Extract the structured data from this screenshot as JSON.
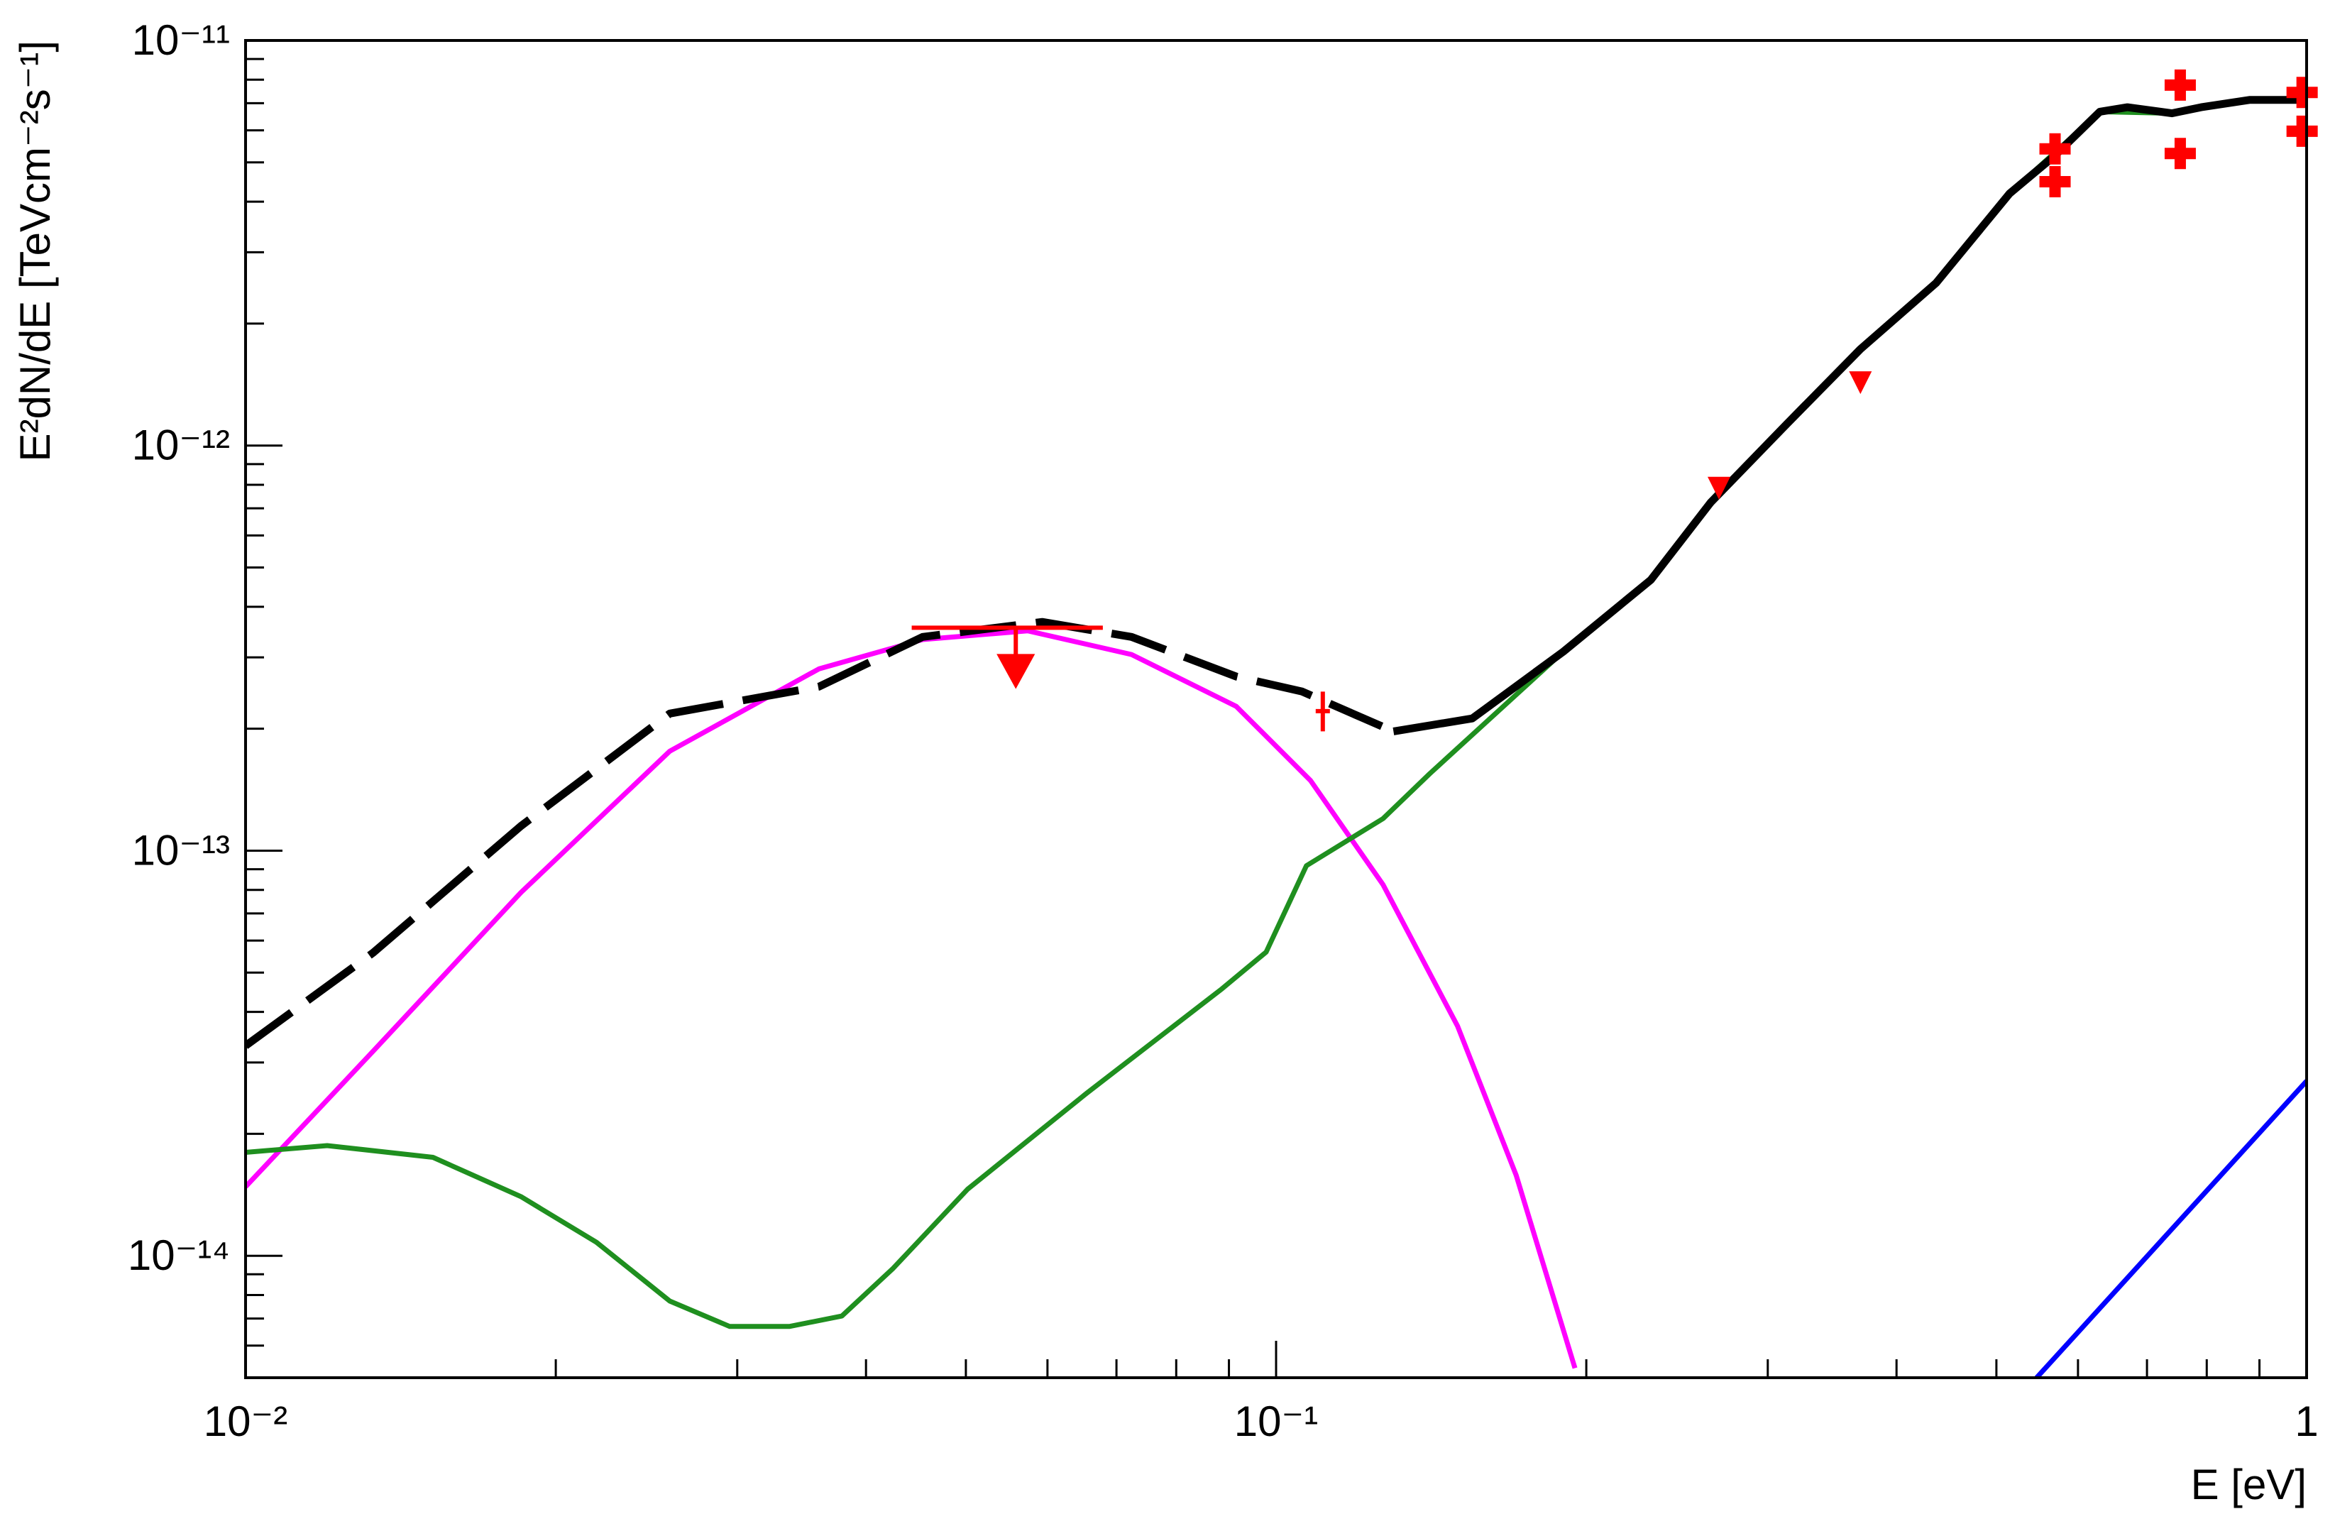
{
  "chart_data": {
    "type": "line",
    "y_label": "E²dN/dE [TeVcm⁻²s⁻¹]",
    "x_label": "E [eV]",
    "xscale": "log",
    "yscale": "log",
    "xlim": [
      0.01,
      1
    ],
    "ylim": [
      5e-15,
      1e-11
    ],
    "xticks": [
      {
        "value": 0.01,
        "label": "10⁻²"
      },
      {
        "value": 0.1,
        "label": "10⁻¹"
      },
      1
    ],
    "yticks": [
      {
        "value": 1e-14,
        "label": "10⁻¹⁴"
      },
      {
        "value": 1e-13,
        "label": "10⁻¹³"
      },
      {
        "value": 1e-12,
        "label": "10⁻¹²"
      },
      {
        "value": 1e-11,
        "label": "10⁻¹¹"
      }
    ],
    "series": [
      {
        "color": "#ff00ff",
        "style": "solid",
        "x": [
          0.01,
          0.0133,
          0.0185,
          0.0258,
          0.036,
          0.0454,
          0.0574,
          0.0724,
          0.0915,
          0.108,
          0.127,
          0.15,
          0.171,
          0.195
        ],
        "values": [
          1.48e-14,
          3.2e-14,
          7.88e-14,
          1.76e-13,
          2.81e-13,
          3.32e-13,
          3.49e-13,
          3.05e-13,
          2.27e-13,
          1.49e-13,
          8.24e-14,
          3.69e-14,
          1.58e-14,
          5.28e-15
        ]
      },
      {
        "color": "#1f8f1f",
        "style": "solid",
        "x": [
          0.01,
          0.012,
          0.0152,
          0.0185,
          0.0219,
          0.0258,
          0.0295,
          0.0337,
          0.0379,
          0.0425,
          0.0502,
          0.0655,
          0.0886,
          0.0978,
          0.107,
          0.127,
          0.141,
          0.19,
          0.231,
          0.264,
          0.313,
          0.369,
          0.437,
          0.515,
          0.63,
          0.74,
          0.88,
          1.0
        ],
        "values": [
          1.8e-14,
          1.87e-14,
          1.75e-14,
          1.4e-14,
          1.08e-14,
          7.73e-15,
          6.69e-15,
          6.69e-15,
          7.1e-15,
          9.31e-15,
          1.46e-14,
          2.52e-14,
          4.56e-14,
          5.62e-14,
          9.18e-14,
          1.2e-13,
          1.55e-13,
          3.1e-13,
          4.66e-13,
          7.23e-13,
          1.13e-12,
          1.73e-12,
          2.52e-12,
          4.19e-12,
          6.67e-12,
          6.61e-12,
          7.13e-12,
          7.13e-12
        ]
      },
      {
        "color": "#0000ff",
        "style": "solid",
        "x": [
          0.547,
          1.0
        ],
        "values": [
          5e-15,
          2.7e-14
        ]
      },
      {
        "color": "#000000",
        "style": "dashed",
        "x": [
          0.01,
          0.0133,
          0.0185,
          0.0258,
          0.036,
          0.0454,
          0.0593,
          0.0724,
          0.0915,
          0.106,
          0.13
        ],
        "values": [
          3.3e-14,
          5.6e-14,
          1.15e-13,
          2.18e-13,
          2.54e-13,
          3.37e-13,
          3.67e-13,
          3.37e-13,
          2.69e-13,
          2.47e-13,
          1.97e-13
        ]
      },
      {
        "color": "#000000",
        "style": "solid",
        "x": [
          0.13,
          0.155,
          0.19,
          0.231,
          0.264,
          0.313,
          0.369,
          0.437,
          0.515,
          0.569,
          0.63,
          0.67,
          0.74,
          0.79,
          0.88,
          1.0
        ],
        "values": [
          1.97e-13,
          2.12e-13,
          3.1e-13,
          4.66e-13,
          7.23e-13,
          1.13e-12,
          1.73e-12,
          2.52e-12,
          4.19e-12,
          5.18e-12,
          6.67e-12,
          6.84e-12,
          6.61e-12,
          6.84e-12,
          7.13e-12,
          7.13e-12
        ]
      }
    ],
    "marker_color": "#ff0000",
    "points": {
      "x": [
        0.57,
        0.57,
        0.754,
        0.754,
        0.99,
        0.99
      ],
      "values": [
        5.4e-12,
        4.48e-12,
        7.76e-12,
        5.26e-12,
        7.44e-12,
        5.97e-12
      ]
    },
    "upper_limits": {
      "x": [
        0.269,
        0.369
      ],
      "values": [
        7.85e-13,
        1.43e-12
      ]
    },
    "upper_limit_bar": {
      "x": 0.0559,
      "value": 3.55e-13,
      "xlow": 0.0443,
      "xhigh": 0.0679
    },
    "error_point": {
      "x": 0.111,
      "value": 2.21e-13,
      "low": 1.97e-13,
      "high": 2.47e-13
    }
  }
}
